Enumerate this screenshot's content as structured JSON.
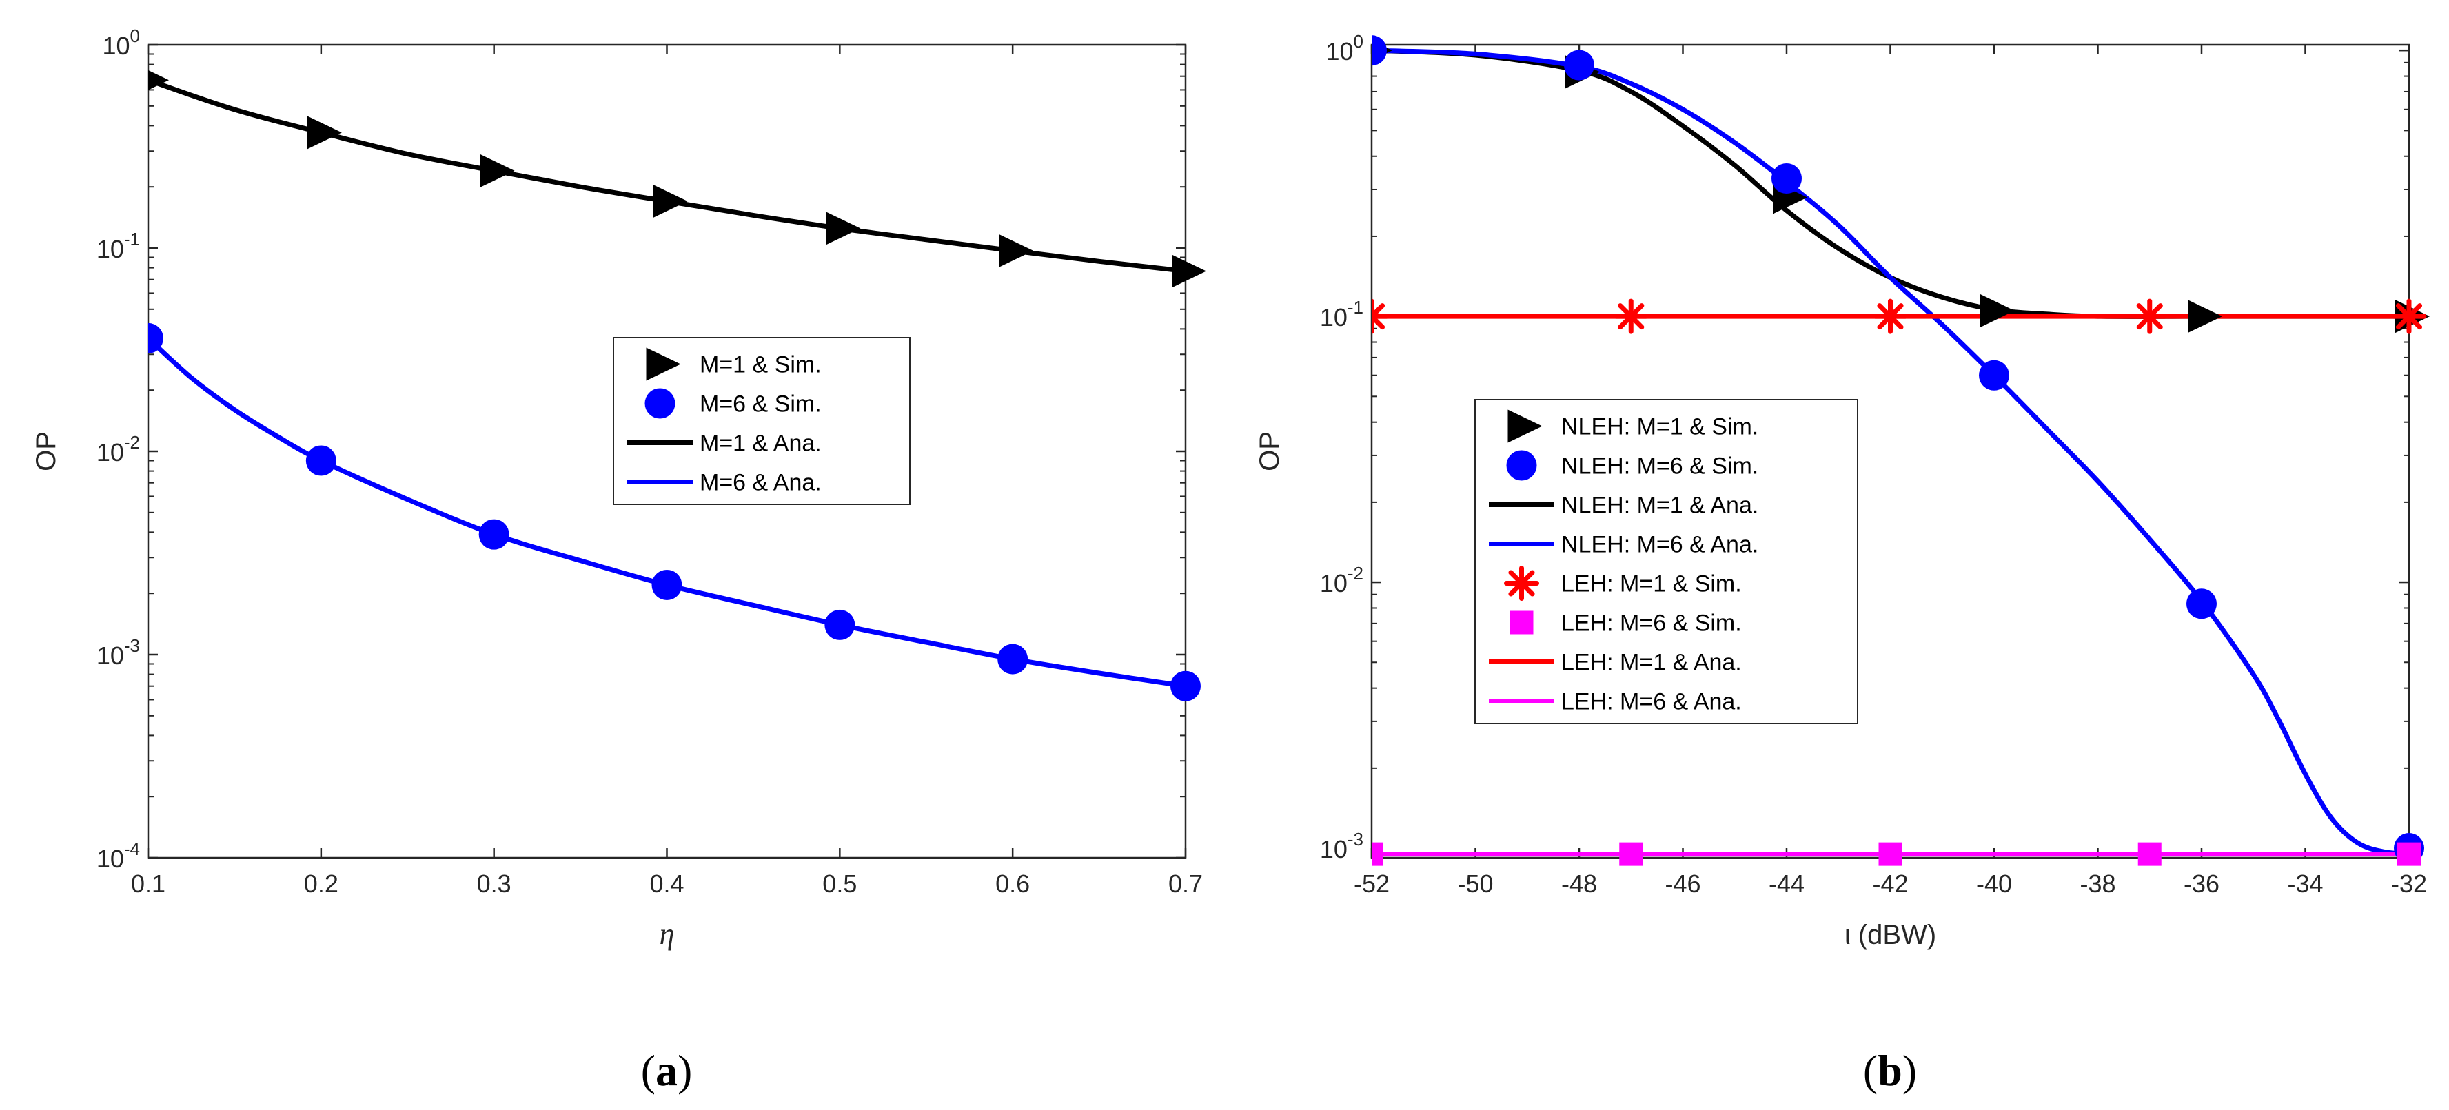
{
  "colors": {
    "black": "#000000",
    "blue": "#0000ff",
    "red": "#ff0000",
    "magenta": "#ff00ff"
  },
  "chart_data": [
    {
      "id": "a",
      "type": "line",
      "caption": {
        "open": "(",
        "letter": "a",
        "close": ")"
      },
      "xlabel": "η",
      "ylabel": "OP",
      "xlim": [
        0.1,
        0.7
      ],
      "ylim": [
        0.0001,
        1
      ],
      "yscale": "log",
      "xticks": [
        "0.1",
        "0.2",
        "0.3",
        "0.4",
        "0.5",
        "0.6",
        "0.7"
      ],
      "yticks": [
        {
          "base": "10",
          "exp": "0"
        },
        {
          "base": "10",
          "exp": "-1"
        },
        {
          "base": "10",
          "exp": "-2"
        },
        {
          "base": "10",
          "exp": "-3"
        },
        {
          "base": "10",
          "exp": "-4"
        }
      ],
      "legend_position": "center-right",
      "series": [
        {
          "name": "M=1 & Sim.",
          "kind": "markers",
          "marker": "triangle-right",
          "color": "#000000",
          "x": [
            0.1,
            0.2,
            0.3,
            0.4,
            0.5,
            0.6,
            0.7
          ],
          "y": [
            0.67,
            0.37,
            0.24,
            0.17,
            0.125,
            0.097,
            0.077
          ]
        },
        {
          "name": "M=6 & Sim.",
          "kind": "markers",
          "marker": "circle",
          "color": "#0000ff",
          "x": [
            0.1,
            0.2,
            0.3,
            0.4,
            0.5,
            0.6,
            0.7
          ],
          "y": [
            0.036,
            0.009,
            0.0039,
            0.0022,
            0.0014,
            0.00095,
            0.0007
          ]
        },
        {
          "name": "M=1 & Ana.",
          "kind": "line",
          "color": "#000000",
          "x": [
            0.1,
            0.15,
            0.2,
            0.25,
            0.3,
            0.35,
            0.4,
            0.45,
            0.5,
            0.55,
            0.6,
            0.65,
            0.7
          ],
          "y": [
            0.67,
            0.48,
            0.37,
            0.29,
            0.24,
            0.2,
            0.17,
            0.145,
            0.125,
            0.11,
            0.097,
            0.086,
            0.077
          ]
        },
        {
          "name": "M=6 & Ana.",
          "kind": "line",
          "color": "#0000ff",
          "x": [
            0.1,
            0.125,
            0.15,
            0.175,
            0.2,
            0.25,
            0.3,
            0.35,
            0.4,
            0.45,
            0.5,
            0.55,
            0.6,
            0.65,
            0.7
          ],
          "y": [
            0.036,
            0.023,
            0.016,
            0.0118,
            0.009,
            0.0058,
            0.0039,
            0.0029,
            0.0022,
            0.00175,
            0.0014,
            0.00115,
            0.00095,
            0.00081,
            0.0007
          ]
        }
      ]
    },
    {
      "id": "b",
      "type": "line",
      "caption": {
        "open": "(",
        "letter": "b",
        "close": ")"
      },
      "xlabel": "ι (dBW)",
      "ylabel": "OP",
      "xlim": [
        -52,
        -32
      ],
      "ylim": [
        0.00092,
        1.05
      ],
      "yscale": "log",
      "xticks": [
        "-52",
        "-50",
        "-48",
        "-46",
        "-44",
        "-42",
        "-40",
        "-38",
        "-36",
        "-34",
        "-32"
      ],
      "yticks": [
        {
          "base": "10",
          "exp": "0"
        },
        {
          "base": "10",
          "exp": "-1"
        },
        {
          "base": "10",
          "exp": "-2"
        },
        {
          "base": "10",
          "exp": "-3"
        }
      ],
      "legend_position": "center-left",
      "series": [
        {
          "name": "NLEH: M=1 & Sim.",
          "kind": "markers",
          "marker": "triangle-right",
          "color": "#000000",
          "x": [
            -52,
            -48,
            -44,
            -40,
            -36,
            -32
          ],
          "y": [
            1.0,
            0.83,
            0.28,
            0.105,
            0.1,
            0.1
          ]
        },
        {
          "name": "NLEH: M=6 & Sim.",
          "kind": "markers",
          "marker": "circle",
          "color": "#0000ff",
          "x": [
            -52,
            -48,
            -44,
            -40,
            -36,
            -32
          ],
          "y": [
            1.0,
            0.88,
            0.33,
            0.06,
            0.0083,
            0.001
          ]
        },
        {
          "name": "NLEH: M=1 & Ana.",
          "kind": "line",
          "color": "#000000",
          "x": [
            -52,
            -50,
            -48,
            -47,
            -46,
            -45,
            -44,
            -43,
            -42,
            -41,
            -40,
            -39,
            -38,
            -36,
            -34,
            -32
          ],
          "y": [
            1.0,
            0.96,
            0.84,
            0.7,
            0.52,
            0.37,
            0.25,
            0.18,
            0.14,
            0.118,
            0.106,
            0.102,
            0.1,
            0.1,
            0.1,
            0.1
          ]
        },
        {
          "name": "NLEH: M=6 & Ana.",
          "kind": "line",
          "color": "#0000ff",
          "x": [
            -52,
            -50,
            -48,
            -47,
            -46,
            -45,
            -44,
            -43,
            -42,
            -41,
            -40,
            -39,
            -38,
            -37,
            -36,
            -35,
            -34.5,
            -34,
            -33.5,
            -33,
            -32.5,
            -32
          ],
          "y": [
            1.0,
            0.97,
            0.87,
            0.75,
            0.6,
            0.45,
            0.32,
            0.22,
            0.14,
            0.093,
            0.06,
            0.038,
            0.024,
            0.0145,
            0.0085,
            0.0045,
            0.003,
            0.0019,
            0.0013,
            0.00105,
            0.00097,
            0.00095
          ]
        },
        {
          "name": "LEH: M=1 & Sim.",
          "kind": "markers",
          "marker": "asterisk",
          "color": "#ff0000",
          "x": [
            -52,
            -47,
            -42,
            -37,
            -32
          ],
          "y": [
            0.1,
            0.1,
            0.1,
            0.1,
            0.1
          ]
        },
        {
          "name": "LEH: M=6 & Sim.",
          "kind": "markers",
          "marker": "square",
          "color": "#ff00ff",
          "x": [
            -52,
            -47,
            -42,
            -37,
            -32
          ],
          "y": [
            0.00095,
            0.00095,
            0.00095,
            0.00095,
            0.00095
          ]
        },
        {
          "name": "LEH: M=1 & Ana.",
          "kind": "line",
          "color": "#ff0000",
          "x": [
            -52,
            -32
          ],
          "y": [
            0.1,
            0.1
          ]
        },
        {
          "name": "LEH: M=6 & Ana.",
          "kind": "line",
          "color": "#ff00ff",
          "x": [
            -52,
            -32
          ],
          "y": [
            0.00095,
            0.00095
          ]
        }
      ]
    }
  ]
}
